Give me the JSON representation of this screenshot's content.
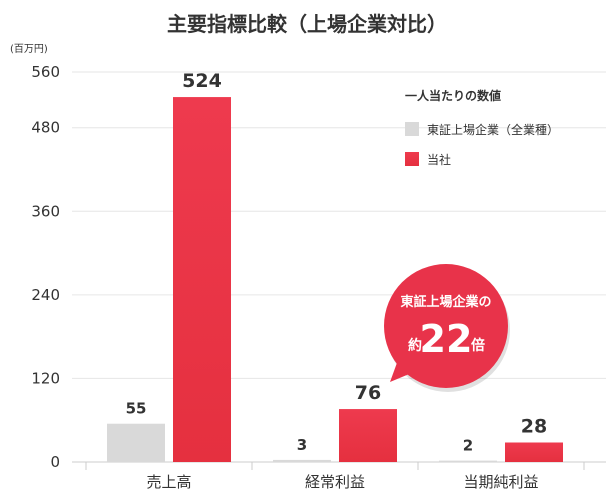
{
  "chart_data": {
    "type": "bar",
    "title": "主要指標比較（上場企業対比）",
    "ylabel_unit": "(百万円)",
    "categories": [
      "売上高",
      "経常利益",
      "当期純利益"
    ],
    "series": [
      {
        "name": "東証上場企業（全業種）",
        "values": [
          55,
          3,
          2
        ],
        "color": "#d9d9d9"
      },
      {
        "name": "当社",
        "values": [
          524,
          76,
          28
        ],
        "color": "#e8334a"
      }
    ],
    "ylim": [
      0,
      560
    ],
    "yticks": [
      "0",
      "120",
      "240",
      "360",
      "480",
      "560"
    ],
    "grid": true,
    "legend_title": "一人当たりの数値",
    "legend_position": "top-right"
  },
  "callout": {
    "line1": "東証上場企業の",
    "prefix": "約",
    "number": "22",
    "suffix": "倍",
    "color": "#e8334a"
  }
}
